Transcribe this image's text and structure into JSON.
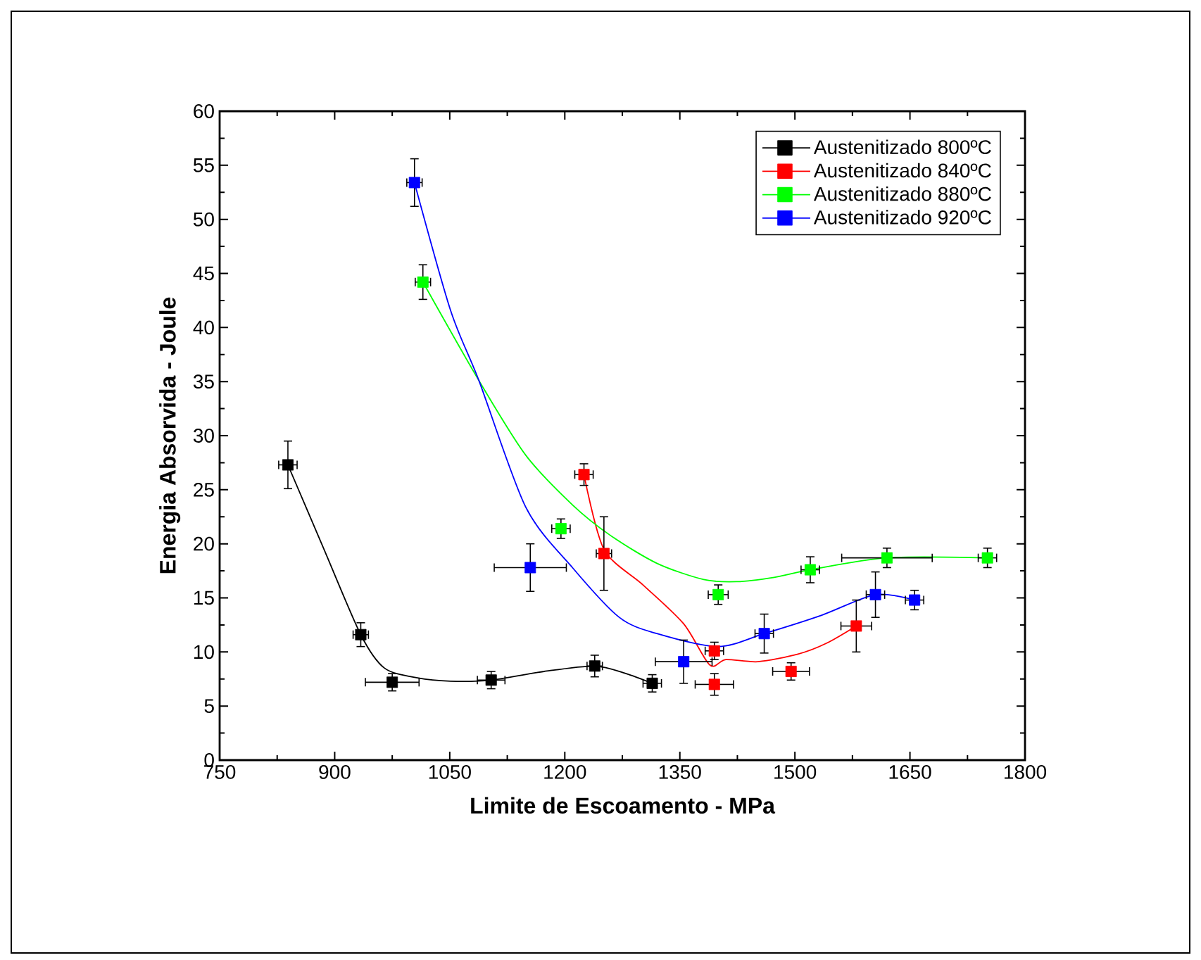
{
  "chart_data": {
    "type": "scatter",
    "xlabel": "Limite de Escoamento - MPa",
    "ylabel": "Energia Absorvida - Joule",
    "xlim": [
      750,
      1800
    ],
    "ylim": [
      0,
      60
    ],
    "xticks": [
      750,
      900,
      1050,
      1200,
      1350,
      1500,
      1650,
      1800
    ],
    "yticks": [
      0,
      5,
      10,
      15,
      20,
      25,
      30,
      35,
      40,
      45,
      50,
      55,
      60
    ],
    "grid": false,
    "legend": "top right",
    "series": [
      {
        "type": "line",
        "color": "#000000",
        "marker": "none",
        "line_style": "solid",
        "x": [
          839,
          886,
          934,
          965,
          1008,
          1051,
          1104,
          1173,
          1239,
          1280,
          1314
        ],
        "values": [
          27.3,
          19.5,
          11.6,
          8.5,
          7.6,
          7.3,
          7.4,
          8.2,
          8.7,
          8.0,
          7.1
        ]
      },
      {
        "type": "line",
        "color": "#ff0000",
        "marker": "none",
        "line_style": "solid",
        "x": [
          1225,
          1251,
          1302,
          1355,
          1389,
          1410,
          1452,
          1504,
          1541,
          1580
        ],
        "values": [
          26.4,
          19.5,
          16.2,
          12.6,
          8.8,
          9.3,
          9.1,
          9.8,
          10.8,
          12.4
        ]
      },
      {
        "type": "line",
        "color": "#00ff00",
        "marker": "none",
        "line_style": "solid",
        "x": [
          1015,
          1088,
          1149,
          1210,
          1259,
          1320,
          1381,
          1424,
          1473,
          1520,
          1620,
          1751
        ],
        "values": [
          44.2,
          35.1,
          28.2,
          23.6,
          20.8,
          18.2,
          16.7,
          16.5,
          16.9,
          17.6,
          18.7,
          18.7
        ]
      },
      {
        "type": "line",
        "color": "#0000ff",
        "marker": "none",
        "line_style": "solid",
        "x": [
          1004,
          1051,
          1088,
          1149,
          1210,
          1271,
          1320,
          1400,
          1460,
          1535,
          1605,
          1656
        ],
        "values": [
          53.4,
          41.6,
          35.1,
          23.4,
          17.8,
          13.2,
          11.7,
          10.5,
          11.7,
          13.4,
          15.3,
          14.8
        ]
      },
      {
        "name": "Austenitizado 800ºC",
        "color": "#000000",
        "marker": "square",
        "x": [
          839,
          934,
          975,
          1104,
          1239,
          1314
        ],
        "values": [
          27.3,
          11.6,
          7.2,
          7.4,
          8.7,
          7.1
        ],
        "errors": [
          2.2,
          1.1,
          0.8,
          0.8,
          1.0,
          0.8
        ],
        "xerrors": [
          12,
          10,
          35,
          18,
          10,
          12
        ]
      },
      {
        "name": "Austenitizado 840ºC",
        "color": "#ff0000",
        "marker": "square",
        "x": [
          1225,
          1251,
          1395,
          1395,
          1495,
          1580
        ],
        "values": [
          26.4,
          19.1,
          10.1,
          7.0,
          8.2,
          12.4
        ],
        "errors": [
          1.0,
          3.4,
          0.8,
          1.0,
          0.8,
          2.4
        ],
        "xerrors": [
          12,
          10,
          12,
          25,
          24,
          20
        ]
      },
      {
        "name": "Austenitizado 880ºC",
        "color": "#00ff00",
        "marker": "square",
        "x": [
          1015,
          1195,
          1400,
          1520,
          1620,
          1751
        ],
        "values": [
          44.2,
          21.4,
          15.3,
          17.6,
          18.7,
          18.7
        ],
        "errors": [
          1.6,
          0.9,
          0.9,
          1.2,
          0.9,
          0.9
        ],
        "xerrors": [
          10,
          12,
          13,
          12,
          59,
          12
        ]
      },
      {
        "name": "Austenitizado 920ºC",
        "color": "#0000ff",
        "marker": "square",
        "x": [
          1004,
          1155,
          1355,
          1460,
          1605,
          1656
        ],
        "values": [
          53.4,
          17.8,
          9.1,
          11.7,
          15.3,
          14.8
        ],
        "errors": [
          2.2,
          2.2,
          2.0,
          1.8,
          2.1,
          0.9
        ],
        "xerrors": [
          10,
          47,
          37,
          12,
          12,
          12
        ]
      }
    ]
  }
}
